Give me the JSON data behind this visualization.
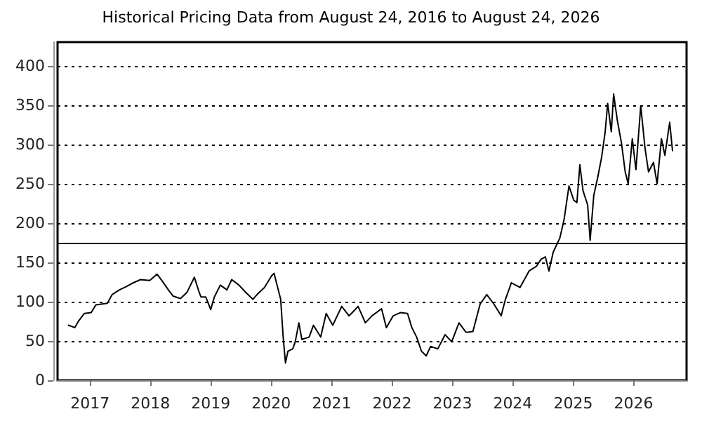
{
  "chart_data": {
    "type": "line",
    "title": "Historical Pricing Data from August 24, 2016 to August 24, 2026",
    "x": [
      "2016-08-24",
      "2016-10-01",
      "2016-10-23",
      "2016-11-28",
      "2017-01-08",
      "2017-02-06",
      "2017-04-16",
      "2017-05-15",
      "2017-06-28",
      "2017-08-07",
      "2017-09-20",
      "2017-11-03",
      "2017-12-28",
      "2018-02-10",
      "2018-03-11",
      "2018-04-20",
      "2018-05-19",
      "2018-07-02",
      "2018-08-11",
      "2018-09-24",
      "2018-10-23",
      "2018-11-03",
      "2018-12-02",
      "2019-01-01",
      "2019-01-23",
      "2019-02-28",
      "2019-04-09",
      "2019-05-08",
      "2019-06-21",
      "2019-07-31",
      "2019-09-13",
      "2019-10-08",
      "2019-11-22",
      "2020-01-04",
      "2020-01-19",
      "2020-02-06",
      "2020-02-28",
      "2020-03-14",
      "2020-03-28",
      "2020-04-12",
      "2020-05-11",
      "2020-05-26",
      "2020-06-17",
      "2020-07-05",
      "2020-08-18",
      "2020-09-13",
      "2020-10-27",
      "2020-11-29",
      "2021-01-08",
      "2021-03-03",
      "2021-04-16",
      "2021-05-01",
      "2021-06-10",
      "2021-07-24",
      "2021-09-02",
      "2021-10-30",
      "2021-11-28",
      "2022-01-08",
      "2022-02-20",
      "2022-04-05",
      "2022-05-01",
      "2022-05-30",
      "2022-06-28",
      "2022-07-27",
      "2022-08-22",
      "2022-10-05",
      "2022-11-18",
      "2022-12-28",
      "2023-02-10",
      "2023-03-25",
      "2023-05-05",
      "2023-06-18",
      "2023-07-28",
      "2023-09-09",
      "2023-10-23",
      "2023-11-18",
      "2023-12-24",
      "2024-02-14",
      "2024-04-09",
      "2024-05-23",
      "2024-06-21",
      "2024-07-16",
      "2024-08-07",
      "2024-09-02",
      "2024-10-12",
      "2024-11-07",
      "2024-12-06",
      "2025-01-04",
      "2025-01-23",
      "2025-02-10",
      "2025-03-01",
      "2025-03-29",
      "2025-04-13",
      "2025-05-05",
      "2025-05-27",
      "2025-06-21",
      "2025-07-13",
      "2025-07-28",
      "2025-08-19",
      "2025-09-02",
      "2025-09-24",
      "2025-10-20",
      "2025-11-11",
      "2025-11-29",
      "2025-12-24",
      "2026-01-15",
      "2026-02-13",
      "2026-03-11",
      "2026-04-01",
      "2026-05-01",
      "2026-05-23",
      "2026-06-18",
      "2026-07-09",
      "2026-08-07",
      "2026-08-24"
    ],
    "series": [
      {
        "color": "#000000",
        "values": [
          70,
          67,
          75,
          85,
          86,
          96,
          98,
          109,
          115,
          119,
          124,
          128,
          127,
          135,
          127,
          115,
          107,
          104,
          112,
          131,
          112,
          106,
          106,
          90,
          106,
          121,
          115,
          128,
          121,
          112,
          103,
          109,
          118,
          133,
          136,
          121,
          103,
          55,
          22,
          37,
          40,
          49,
          73,
          52,
          55,
          70,
          55,
          85,
          70,
          94,
          82,
          85,
          94,
          73,
          82,
          91,
          67,
          82,
          86,
          85,
          67,
          55,
          37,
          31,
          43,
          40,
          58,
          49,
          73,
          61,
          62,
          97,
          109,
          97,
          82,
          103,
          124,
          118,
          139,
          145,
          154,
          157,
          139,
          163,
          181,
          205,
          247,
          229,
          226,
          274,
          241,
          223,
          178,
          235,
          256,
          283,
          316,
          352,
          316,
          364,
          331,
          301,
          265,
          250,
          307,
          268,
          349,
          295,
          265,
          277,
          250,
          307,
          286,
          328,
          292
        ]
      }
    ],
    "xlim": [
      "2016-06-19",
      "2026-11-17"
    ],
    "xticks": [
      {
        "value": "2017-01-01",
        "label": "2017"
      },
      {
        "value": "2018-01-01",
        "label": "2018"
      },
      {
        "value": "2019-01-01",
        "label": "2019"
      },
      {
        "value": "2020-01-01",
        "label": "2020"
      },
      {
        "value": "2021-01-01",
        "label": "2021"
      },
      {
        "value": "2022-01-01",
        "label": "2022"
      },
      {
        "value": "2023-01-01",
        "label": "2023"
      },
      {
        "value": "2024-01-01",
        "label": "2024"
      },
      {
        "value": "2025-01-01",
        "label": "2025"
      },
      {
        "value": "2026-01-01",
        "label": "2026"
      }
    ],
    "ylim": [
      0,
      430
    ],
    "yticks": [
      0,
      50,
      100,
      150,
      200,
      250,
      300,
      350,
      400
    ],
    "grid": "y",
    "marker": "none",
    "line_style": "solid",
    "ref_lines": [
      {
        "axis": "y",
        "value": 175,
        "color": "#000000",
        "line_style": "solid"
      }
    ]
  }
}
